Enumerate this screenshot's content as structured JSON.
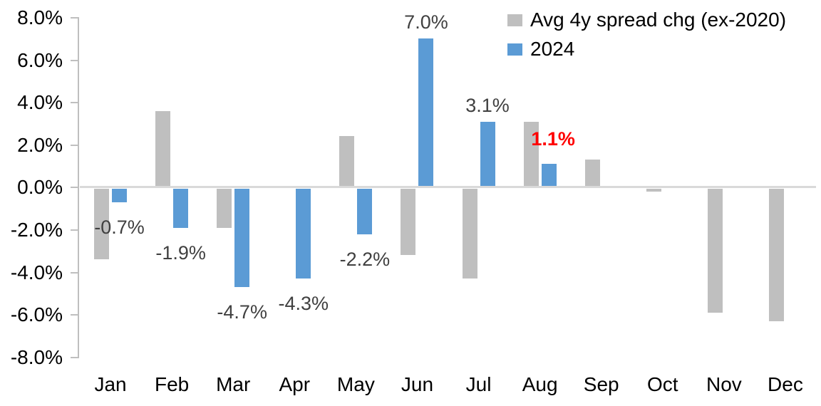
{
  "chart_data": {
    "type": "bar",
    "title": "",
    "categories": [
      "Jan",
      "Feb",
      "Mar",
      "Apr",
      "May",
      "Jun",
      "Jul",
      "Aug",
      "Sep",
      "Oct",
      "Nov",
      "Dec"
    ],
    "series": [
      {
        "name": "Avg 4y spread chg (ex-2020)",
        "color": "#BFBFBF",
        "values": [
          -3.4,
          3.6,
          -1.9,
          0,
          2.4,
          -3.2,
          -4.3,
          3.1,
          1.3,
          -0.2,
          -5.9,
          -6.3
        ]
      },
      {
        "name": "2024",
        "color": "#5B9BD5",
        "values": [
          -0.7,
          -1.9,
          -4.7,
          -4.3,
          -2.2,
          7.0,
          3.1,
          1.1,
          null,
          null,
          null,
          null
        ]
      }
    ],
    "data_labels": [
      {
        "category": "Jan",
        "text": "-0.7%",
        "color": "#404040",
        "bold": false
      },
      {
        "category": "Feb",
        "text": "-1.9%",
        "color": "#404040",
        "bold": false
      },
      {
        "category": "Mar",
        "text": "-4.7%",
        "color": "#404040",
        "bold": false
      },
      {
        "category": "Apr",
        "text": "-4.3%",
        "color": "#404040",
        "bold": false
      },
      {
        "category": "May",
        "text": "-2.2%",
        "color": "#404040",
        "bold": false
      },
      {
        "category": "Jun",
        "text": "7.0%",
        "color": "#404040",
        "bold": false
      },
      {
        "category": "Jul",
        "text": "3.1%",
        "color": "#404040",
        "bold": false
      },
      {
        "category": "Aug",
        "text": "1.1%",
        "color": "#FF0000",
        "bold": true
      }
    ],
    "y_axis": {
      "min": -8,
      "max": 8,
      "step": 2,
      "tick_labels": [
        "8.0%",
        "6.0%",
        "4.0%",
        "2.0%",
        "0.0%",
        "-2.0%",
        "-4.0%",
        "-6.0%",
        "-8.0%"
      ],
      "format": "percent"
    },
    "grid": "zero-line-only",
    "legend": {
      "position": "top-right",
      "entries": [
        {
          "label": "Avg 4y spread chg (ex-2020)",
          "color": "#BFBFBF"
        },
        {
          "label": "2024",
          "color": "#5B9BD5"
        }
      ]
    }
  },
  "colors": {
    "bar_gray": "#BFBFBF",
    "bar_blue": "#5B9BD5",
    "zero_line": "#D9D9D9",
    "axis_line": "#BFBFBF",
    "label_gray": "#404040",
    "label_highlight": "#FF0000",
    "background": "#FFFFFF",
    "text": "#000000"
  }
}
